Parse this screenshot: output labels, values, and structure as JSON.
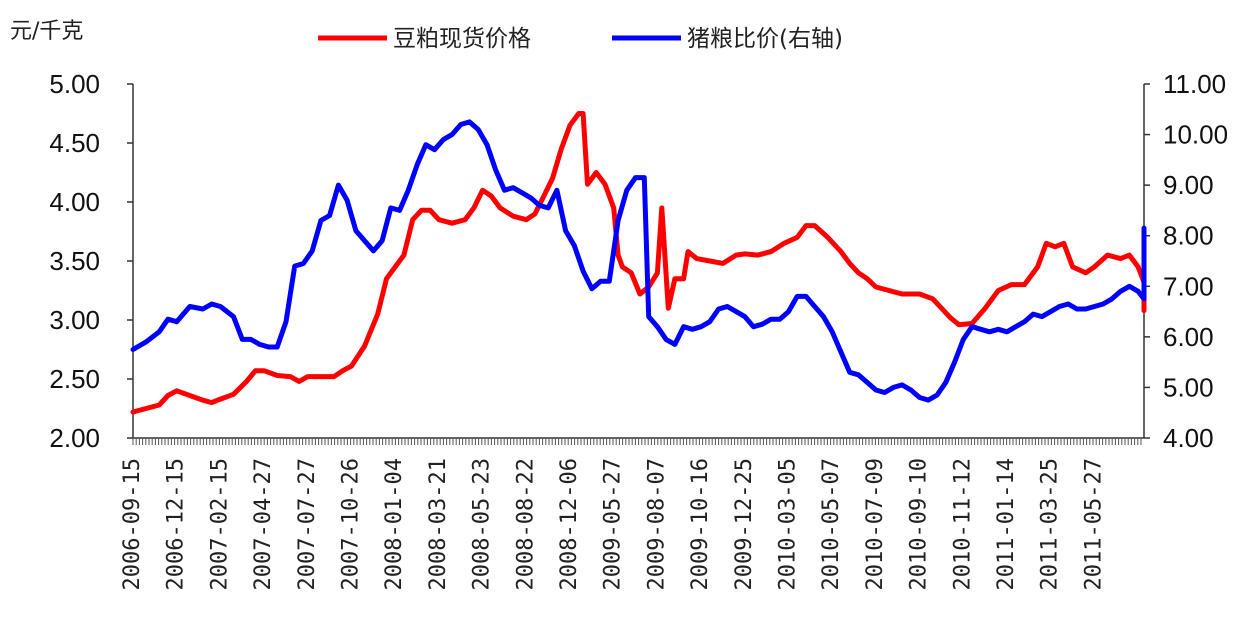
{
  "chart_data": {
    "type": "line",
    "y_unit_label": "元/千克",
    "ylim_left": [
      2.0,
      5.0
    ],
    "ylim_right": [
      4.0,
      11.0
    ],
    "left_ticks": [
      "2.00",
      "2.50",
      "3.00",
      "3.50",
      "4.00",
      "4.50",
      "5.00"
    ],
    "right_ticks": [
      "4.00",
      "5.00",
      "6.00",
      "7.00",
      "8.00",
      "9.00",
      "10.00",
      "11.00"
    ],
    "x_labels": [
      "2006-09-15",
      "2006-12-15",
      "2007-02-15",
      "2007-04-27",
      "2007-07-27",
      "2007-10-26",
      "2008-01-04",
      "2008-03-21",
      "2008-05-23",
      "2008-08-22",
      "2008-12-06",
      "2009-05-27",
      "2009-08-07",
      "2009-10-16",
      "2009-12-25",
      "2010-03-05",
      "2010-05-07",
      "2010-07-09",
      "2010-09-10",
      "2010-11-12",
      "2011-01-14",
      "2011-03-25",
      "2011-05-27"
    ],
    "legend_position": "top-center",
    "grid": false,
    "series": [
      {
        "name": "豆粕现货价格",
        "axis": "left",
        "color": "#ff0000",
        "points": [
          [
            0,
            2.22
          ],
          [
            0.3,
            2.25
          ],
          [
            0.6,
            2.28
          ],
          [
            0.8,
            2.36
          ],
          [
            1.0,
            2.4
          ],
          [
            1.3,
            2.36
          ],
          [
            1.6,
            2.32
          ],
          [
            1.8,
            2.3
          ],
          [
            2.0,
            2.33
          ],
          [
            2.3,
            2.37
          ],
          [
            2.6,
            2.48
          ],
          [
            2.8,
            2.57
          ],
          [
            3.0,
            2.57
          ],
          [
            3.3,
            2.53
          ],
          [
            3.6,
            2.52
          ],
          [
            3.8,
            2.48
          ],
          [
            4.0,
            2.52
          ],
          [
            4.3,
            2.52
          ],
          [
            4.6,
            2.52
          ],
          [
            4.8,
            2.57
          ],
          [
            5.0,
            2.61
          ],
          [
            5.3,
            2.78
          ],
          [
            5.6,
            3.05
          ],
          [
            5.8,
            3.35
          ],
          [
            6.0,
            3.45
          ],
          [
            6.2,
            3.55
          ],
          [
            6.4,
            3.85
          ],
          [
            6.6,
            3.93
          ],
          [
            6.8,
            3.93
          ],
          [
            7.0,
            3.85
          ],
          [
            7.3,
            3.82
          ],
          [
            7.6,
            3.85
          ],
          [
            7.8,
            3.95
          ],
          [
            8.0,
            4.1
          ],
          [
            8.2,
            4.05
          ],
          [
            8.4,
            3.95
          ],
          [
            8.7,
            3.88
          ],
          [
            9.0,
            3.85
          ],
          [
            9.2,
            3.9
          ],
          [
            9.4,
            4.05
          ],
          [
            9.6,
            4.2
          ],
          [
            9.8,
            4.45
          ],
          [
            10.0,
            4.65
          ],
          [
            10.2,
            4.75
          ],
          [
            10.3,
            4.75
          ],
          [
            10.4,
            4.15
          ],
          [
            10.6,
            4.25
          ],
          [
            10.8,
            4.15
          ],
          [
            11.0,
            3.95
          ],
          [
            11.1,
            3.55
          ],
          [
            11.2,
            3.45
          ],
          [
            11.4,
            3.4
          ],
          [
            11.6,
            3.22
          ],
          [
            11.8,
            3.28
          ],
          [
            12.0,
            3.4
          ],
          [
            12.1,
            3.95
          ],
          [
            12.25,
            3.1
          ],
          [
            12.4,
            3.35
          ],
          [
            12.6,
            3.35
          ],
          [
            12.7,
            3.58
          ],
          [
            12.9,
            3.52
          ],
          [
            13.2,
            3.5
          ],
          [
            13.5,
            3.48
          ],
          [
            13.8,
            3.55
          ],
          [
            14.0,
            3.56
          ],
          [
            14.3,
            3.55
          ],
          [
            14.6,
            3.58
          ],
          [
            14.9,
            3.65
          ],
          [
            15.2,
            3.7
          ],
          [
            15.4,
            3.8
          ],
          [
            15.6,
            3.8
          ],
          [
            15.9,
            3.7
          ],
          [
            16.2,
            3.58
          ],
          [
            16.4,
            3.48
          ],
          [
            16.6,
            3.4
          ],
          [
            16.8,
            3.35
          ],
          [
            17.0,
            3.28
          ],
          [
            17.3,
            3.25
          ],
          [
            17.6,
            3.22
          ],
          [
            18.0,
            3.22
          ],
          [
            18.3,
            3.18
          ],
          [
            18.5,
            3.1
          ],
          [
            18.7,
            3.02
          ],
          [
            18.9,
            2.96
          ],
          [
            19.2,
            2.97
          ],
          [
            19.5,
            3.1
          ],
          [
            19.8,
            3.25
          ],
          [
            20.1,
            3.3
          ],
          [
            20.4,
            3.3
          ],
          [
            20.7,
            3.45
          ],
          [
            20.9,
            3.65
          ],
          [
            21.1,
            3.62
          ],
          [
            21.3,
            3.65
          ],
          [
            21.5,
            3.45
          ],
          [
            21.8,
            3.4
          ],
          [
            22.0,
            3.45
          ],
          [
            22.3,
            3.55
          ],
          [
            22.6,
            3.52
          ],
          [
            22.8,
            3.55
          ],
          [
            23.0,
            3.45
          ],
          [
            23.2,
            3.32
          ],
          [
            23.4,
            3.25
          ],
          [
            23.6,
            3.18
          ],
          [
            23.8,
            3.15
          ],
          [
            24.0,
            3.14
          ],
          [
            24.2,
            3.1
          ],
          [
            24.5,
            3.08
          ],
          [
            24.8,
            3.12
          ],
          [
            25.2,
            3.15
          ],
          [
            25.5,
            3.18
          ],
          [
            25.8,
            3.28
          ]
        ]
      },
      {
        "name": "猪粮比价(右轴)",
        "axis": "right",
        "color": "#0000ff",
        "points": [
          [
            0,
            5.75
          ],
          [
            0.3,
            5.9
          ],
          [
            0.6,
            6.1
          ],
          [
            0.8,
            6.35
          ],
          [
            1.0,
            6.3
          ],
          [
            1.3,
            6.6
          ],
          [
            1.6,
            6.55
          ],
          [
            1.8,
            6.65
          ],
          [
            2.0,
            6.6
          ],
          [
            2.3,
            6.4
          ],
          [
            2.5,
            5.95
          ],
          [
            2.7,
            5.95
          ],
          [
            2.9,
            5.85
          ],
          [
            3.1,
            5.8
          ],
          [
            3.3,
            5.8
          ],
          [
            3.5,
            6.3
          ],
          [
            3.7,
            7.4
          ],
          [
            3.9,
            7.45
          ],
          [
            4.1,
            7.7
          ],
          [
            4.3,
            8.3
          ],
          [
            4.5,
            8.4
          ],
          [
            4.7,
            9.0
          ],
          [
            4.9,
            8.7
          ],
          [
            5.1,
            8.1
          ],
          [
            5.3,
            7.9
          ],
          [
            5.5,
            7.7
          ],
          [
            5.7,
            7.9
          ],
          [
            5.9,
            8.55
          ],
          [
            6.1,
            8.5
          ],
          [
            6.3,
            8.9
          ],
          [
            6.5,
            9.4
          ],
          [
            6.7,
            9.8
          ],
          [
            6.9,
            9.7
          ],
          [
            7.1,
            9.9
          ],
          [
            7.3,
            10.0
          ],
          [
            7.5,
            10.2
          ],
          [
            7.7,
            10.25
          ],
          [
            7.9,
            10.1
          ],
          [
            8.1,
            9.8
          ],
          [
            8.3,
            9.3
          ],
          [
            8.5,
            8.9
          ],
          [
            8.7,
            8.95
          ],
          [
            8.9,
            8.85
          ],
          [
            9.1,
            8.75
          ],
          [
            9.3,
            8.6
          ],
          [
            9.5,
            8.55
          ],
          [
            9.7,
            8.9
          ],
          [
            9.9,
            8.1
          ],
          [
            10.1,
            7.8
          ],
          [
            10.3,
            7.3
          ],
          [
            10.5,
            6.95
          ],
          [
            10.7,
            7.1
          ],
          [
            10.9,
            7.1
          ],
          [
            11.1,
            8.3
          ],
          [
            11.3,
            8.9
          ],
          [
            11.5,
            9.15
          ],
          [
            11.7,
            9.15
          ],
          [
            11.8,
            6.4
          ],
          [
            12.0,
            6.2
          ],
          [
            12.2,
            5.95
          ],
          [
            12.4,
            5.85
          ],
          [
            12.6,
            6.2
          ],
          [
            12.8,
            6.15
          ],
          [
            13.0,
            6.2
          ],
          [
            13.2,
            6.3
          ],
          [
            13.4,
            6.55
          ],
          [
            13.6,
            6.6
          ],
          [
            13.8,
            6.5
          ],
          [
            14.0,
            6.4
          ],
          [
            14.2,
            6.2
          ],
          [
            14.4,
            6.25
          ],
          [
            14.6,
            6.35
          ],
          [
            14.8,
            6.35
          ],
          [
            15.0,
            6.5
          ],
          [
            15.2,
            6.8
          ],
          [
            15.4,
            6.8
          ],
          [
            15.6,
            6.6
          ],
          [
            15.8,
            6.4
          ],
          [
            16.0,
            6.1
          ],
          [
            16.2,
            5.7
          ],
          [
            16.4,
            5.3
          ],
          [
            16.6,
            5.25
          ],
          [
            16.8,
            5.1
          ],
          [
            17.0,
            4.95
          ],
          [
            17.2,
            4.9
          ],
          [
            17.4,
            5.0
          ],
          [
            17.6,
            5.05
          ],
          [
            17.8,
            4.95
          ],
          [
            18.0,
            4.8
          ],
          [
            18.2,
            4.75
          ],
          [
            18.4,
            4.85
          ],
          [
            18.6,
            5.1
          ],
          [
            18.8,
            5.5
          ],
          [
            19.0,
            5.95
          ],
          [
            19.2,
            6.2
          ],
          [
            19.4,
            6.15
          ],
          [
            19.6,
            6.1
          ],
          [
            19.8,
            6.15
          ],
          [
            20.0,
            6.1
          ],
          [
            20.2,
            6.2
          ],
          [
            20.4,
            6.3
          ],
          [
            20.6,
            6.45
          ],
          [
            20.8,
            6.4
          ],
          [
            21.0,
            6.5
          ],
          [
            21.2,
            6.6
          ],
          [
            21.4,
            6.65
          ],
          [
            21.6,
            6.55
          ],
          [
            21.8,
            6.55
          ],
          [
            22.0,
            6.6
          ],
          [
            22.2,
            6.65
          ],
          [
            22.4,
            6.75
          ],
          [
            22.6,
            6.9
          ],
          [
            22.8,
            7.0
          ],
          [
            23.0,
            6.9
          ],
          [
            23.2,
            6.75
          ],
          [
            23.4,
            6.8
          ],
          [
            23.6,
            6.95
          ],
          [
            23.8,
            6.8
          ],
          [
            24.0,
            6.8
          ],
          [
            24.2,
            7.1
          ],
          [
            24.4,
            7.4
          ],
          [
            24.6,
            7.7
          ],
          [
            24.8,
            8.1
          ],
          [
            25.0,
            8.15
          ],
          [
            25.2,
            8.15
          ],
          [
            25.4,
            8.1
          ]
        ]
      }
    ]
  }
}
